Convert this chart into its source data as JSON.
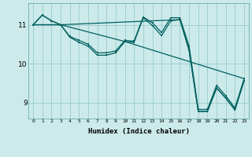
{
  "xlabel": "Humidex (Indice chaleur)",
  "bg_color": "#cceaea",
  "line_color": "#006060",
  "grid_color": "#99cccc",
  "xlim": [
    -0.5,
    23.5
  ],
  "ylim": [
    8.6,
    11.55
  ],
  "yticks": [
    9,
    10,
    11
  ],
  "xticks": [
    0,
    1,
    2,
    3,
    4,
    5,
    6,
    7,
    8,
    9,
    10,
    11,
    12,
    13,
    14,
    15,
    16,
    17,
    18,
    19,
    20,
    21,
    22,
    23
  ],
  "series": [
    {
      "x": [
        0,
        1,
        2,
        3,
        4,
        5,
        6,
        7,
        8,
        9,
        10,
        11,
        12,
        13,
        14,
        15,
        16,
        17,
        18,
        19,
        20,
        21,
        22,
        23
      ],
      "y": [
        11.0,
        11.25,
        11.1,
        11.0,
        10.7,
        10.6,
        10.5,
        10.28,
        10.28,
        10.33,
        10.6,
        10.58,
        11.2,
        11.05,
        10.8,
        11.18,
        11.18,
        10.45,
        8.83,
        8.83,
        9.45,
        9.18,
        8.87,
        9.62
      ]
    },
    {
      "x": [
        0,
        1,
        2,
        3,
        4,
        5,
        6,
        7,
        8,
        9,
        10,
        11,
        12,
        13,
        14,
        15,
        16,
        17,
        18,
        19,
        20,
        21,
        22,
        23
      ],
      "y": [
        11.0,
        11.25,
        11.1,
        11.0,
        10.68,
        10.55,
        10.45,
        10.22,
        10.22,
        10.28,
        10.57,
        10.55,
        11.18,
        10.98,
        10.72,
        11.1,
        11.13,
        10.35,
        8.78,
        8.78,
        9.38,
        9.12,
        8.82,
        9.57
      ]
    },
    {
      "x": [
        0,
        3,
        10,
        23
      ],
      "y": [
        11.0,
        11.0,
        10.57,
        9.62
      ]
    },
    {
      "x": [
        0,
        3,
        16,
        17,
        18,
        19,
        20,
        21,
        22,
        23
      ],
      "y": [
        11.0,
        11.0,
        11.13,
        10.35,
        8.78,
        8.78,
        9.38,
        9.12,
        8.82,
        9.57
      ]
    }
  ]
}
